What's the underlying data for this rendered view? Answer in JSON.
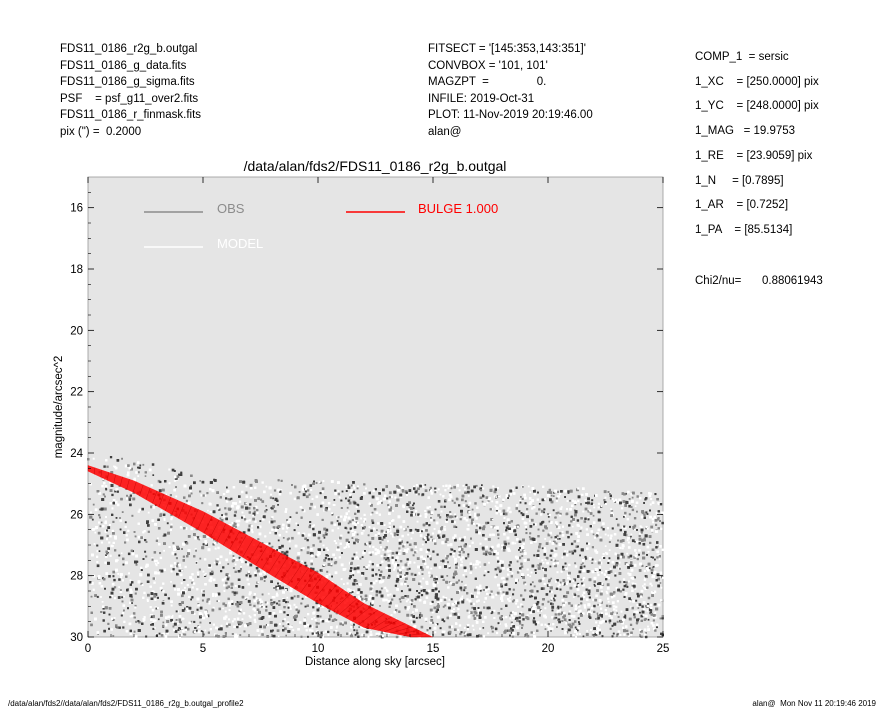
{
  "header_left": [
    "FDS11_0186_r2g_b.outgal",
    "FDS11_0186_g_data.fits",
    "FDS11_0186_g_sigma.fits",
    "PSF    = psf_g11_over2.fits",
    "FDS11_0186_r_finmask.fits",
    "pix (\") =  0.2000"
  ],
  "header_mid": [
    "FITSECT = '[145:353,143:351]'",
    "CONVBOX = '101, 101'",
    "MAGZPT  =               0.",
    "INFILE: 2019-Oct-31",
    "PLOT: 11-Nov-2019 20:19:46.00",
    "alan@"
  ],
  "params": [
    "COMP_1  = sersic",
    "1_XC    = [250.0000] pix",
    "1_YC    = [248.0000] pix",
    "1_MAG   = 19.9753",
    "1_RE    = [23.9059] pix",
    "1_N     = [0.7895]",
    "1_AR    = [0.7252]",
    "1_PA    = [85.5134]"
  ],
  "chi2_label": "Chi2/nu=",
  "chi2_value": "0.88061943",
  "footer_left": "/data/alan/fds2//data/alan/fds2/FDS11_0186_r2g_b.outgal_profile2",
  "footer_right": "alan@  Mon Nov 11 20:19:46 2019",
  "colors": {
    "background_plot": "#e5e5e5",
    "obs": "#8c8c8c",
    "model": "#ffffff",
    "bulge": "#ff0000",
    "points_dark": "#404040",
    "points_mid": "#888888",
    "points_white": "#ffffff"
  },
  "chart_data": {
    "type": "scatter",
    "title": "/data/alan/fds2/FDS11_0186_r2g_b.outgal",
    "xlabel": "Distance along sky [arcsec]",
    "ylabel": "magnitude/arcsec^2",
    "xlim": [
      0,
      25
    ],
    "ylim": [
      30,
      15
    ],
    "y_inverted": true,
    "x_ticks": [
      "0",
      "5",
      "10",
      "15",
      "20",
      "25"
    ],
    "y_ticks": [
      "16",
      "18",
      "20",
      "22",
      "24",
      "26",
      "28",
      "30"
    ],
    "legend": [
      {
        "name": "OBS",
        "color": "#8c8c8c"
      },
      {
        "name": "MODEL",
        "color": "#ffffff"
      },
      {
        "name": "BULGE  1.000",
        "color": "#ff0000"
      }
    ],
    "legend_position": "top",
    "series": [
      {
        "name": "OBS",
        "description": "noisy profile points spreading from ~24.5 at r=0 to the 25-30 range at larger radii",
        "envelope": {
          "x": [
            0,
            2,
            5,
            10,
            15,
            20,
            25
          ],
          "upper": [
            24.0,
            24.2,
            24.8,
            24.9,
            25.0,
            25.1,
            25.3
          ]
        }
      },
      {
        "name": "BULGE  1.000",
        "x_upper": [
          0,
          2,
          5,
          8,
          10,
          12,
          15
        ],
        "y_upper": [
          24.4,
          24.9,
          25.9,
          27.1,
          27.9,
          28.9,
          30.0
        ],
        "x_lower": [
          0,
          2,
          5,
          8,
          10,
          12,
          14
        ],
        "y_lower": [
          24.6,
          25.3,
          26.6,
          28.0,
          28.9,
          29.7,
          30.0
        ]
      }
    ]
  }
}
